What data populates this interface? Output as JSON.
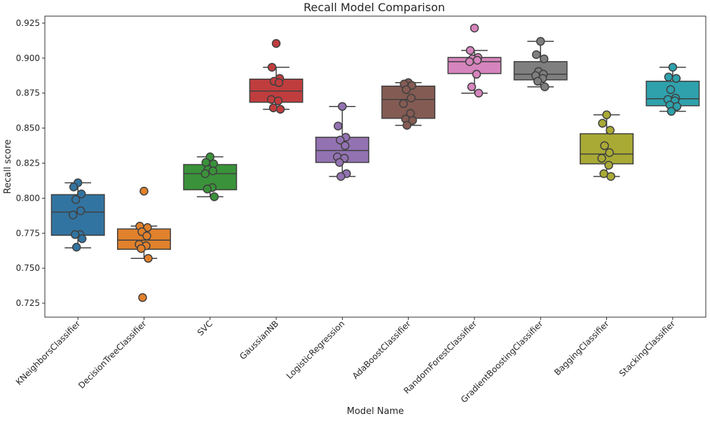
{
  "chart_data": {
    "type": "box",
    "title": "Recall Model Comparison",
    "xlabel": "Model Name",
    "ylabel": "Recall score",
    "ylim": [
      0.715,
      0.93
    ],
    "yticks": [
      "0.725",
      "0.750",
      "0.775",
      "0.800",
      "0.825",
      "0.850",
      "0.875",
      "0.900",
      "0.925"
    ],
    "grid": false,
    "categories": [
      {
        "name": "KNeighborsClassifier",
        "color": "#3274a1",
        "box": {
          "whisker_low": 0.7645,
          "q1": 0.7735,
          "median": 0.79,
          "q3": 0.8025,
          "whisker_high": 0.811
        },
        "points": [
          0.811,
          0.808,
          0.803,
          0.799,
          0.791,
          0.788,
          0.774,
          0.774,
          0.771,
          0.765
        ]
      },
      {
        "name": "DecisionTreeClassifier",
        "color": "#e1812c",
        "box": {
          "whisker_low": 0.757,
          "q1": 0.7635,
          "median": 0.77,
          "q3": 0.778,
          "whisker_high": 0.78
        },
        "points": [
          0.805,
          0.78,
          0.779,
          0.776,
          0.773,
          0.767,
          0.766,
          0.764,
          0.757,
          0.729
        ]
      },
      {
        "name": "SVC",
        "color": "#3a923a",
        "box": {
          "whisker_low": 0.801,
          "q1": 0.806,
          "median": 0.8175,
          "q3": 0.824,
          "whisker_high": 0.8295
        },
        "points": [
          0.8295,
          0.8255,
          0.8245,
          0.8205,
          0.8195,
          0.8175,
          0.8075,
          0.8065,
          0.801
        ]
      },
      {
        "name": "GaussianNB",
        "color": "#c03d3e",
        "box": {
          "whisker_low": 0.8635,
          "q1": 0.8685,
          "median": 0.8765,
          "q3": 0.885,
          "whisker_high": 0.8935
        },
        "points": [
          0.9105,
          0.8935,
          0.8855,
          0.8835,
          0.8825,
          0.8705,
          0.8695,
          0.8645,
          0.8635
        ]
      },
      {
        "name": "LogisticRegression",
        "color": "#9372b2",
        "box": {
          "whisker_low": 0.8155,
          "q1": 0.8255,
          "median": 0.834,
          "q3": 0.8435,
          "whisker_high": 0.8655
        },
        "points": [
          0.8655,
          0.8515,
          0.8435,
          0.8415,
          0.8375,
          0.8295,
          0.8285,
          0.8255,
          0.8175,
          0.8155
        ]
      },
      {
        "name": "AdaBoostClassifier",
        "color": "#845b53",
        "box": {
          "whisker_low": 0.852,
          "q1": 0.857,
          "median": 0.8705,
          "q3": 0.88,
          "whisker_high": 0.8825
        },
        "points": [
          0.8825,
          0.8815,
          0.8805,
          0.8775,
          0.8715,
          0.8675,
          0.8605,
          0.8565,
          0.8555,
          0.852
        ]
      },
      {
        "name": "RandomForestClassifier",
        "color": "#d684bd",
        "box": {
          "whisker_low": 0.875,
          "q1": 0.889,
          "median": 0.8975,
          "q3": 0.9005,
          "whisker_high": 0.9055
        },
        "points": [
          0.9215,
          0.9055,
          0.9005,
          0.8995,
          0.8985,
          0.8975,
          0.8885,
          0.8795,
          0.875
        ]
      },
      {
        "name": "GradientBoostingClassifier",
        "color": "#7f7f7f",
        "box": {
          "whisker_low": 0.8795,
          "q1": 0.8845,
          "median": 0.8885,
          "q3": 0.8975,
          "whisker_high": 0.912
        },
        "points": [
          0.912,
          0.9025,
          0.8995,
          0.8905,
          0.8885,
          0.8875,
          0.8855,
          0.8835,
          0.8795
        ]
      },
      {
        "name": "BaggingClassifier",
        "color": "#a9aa35",
        "box": {
          "whisker_low": 0.8155,
          "q1": 0.8245,
          "median": 0.8315,
          "q3": 0.846,
          "whisker_high": 0.8595
        },
        "points": [
          0.8595,
          0.8535,
          0.8485,
          0.8375,
          0.8325,
          0.8285,
          0.8235,
          0.8175,
          0.8155
        ]
      },
      {
        "name": "StackingClassifier",
        "color": "#2ea1ac",
        "box": {
          "whisker_low": 0.862,
          "q1": 0.866,
          "median": 0.871,
          "q3": 0.8835,
          "whisker_high": 0.8935
        },
        "points": [
          0.8935,
          0.8865,
          0.8855,
          0.8775,
          0.8715,
          0.8705,
          0.8695,
          0.8665,
          0.8655,
          0.862
        ]
      }
    ]
  }
}
